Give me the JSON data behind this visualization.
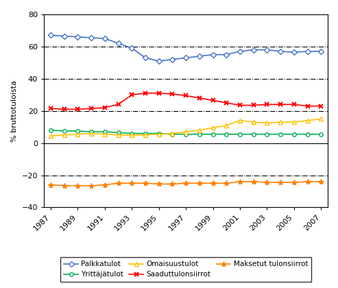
{
  "years": [
    1987,
    1988,
    1989,
    1990,
    1991,
    1992,
    1993,
    1994,
    1995,
    1996,
    1997,
    1998,
    1999,
    2000,
    2001,
    2002,
    2003,
    2004,
    2005,
    2006,
    2007
  ],
  "palkkatulot": [
    67,
    66.5,
    66,
    65.5,
    65,
    62,
    59,
    53,
    51,
    52,
    53,
    54,
    55,
    55,
    57,
    58,
    58,
    57,
    56.5,
    57,
    57
  ],
  "yrittajatulot": [
    8,
    7.5,
    7.5,
    7,
    7,
    6.5,
    6,
    6,
    6,
    5.5,
    5.5,
    5.5,
    5.5,
    5.5,
    5.5,
    5.5,
    5.5,
    5.5,
    5.5,
    5.5,
    5.5
  ],
  "omaisuustulot": [
    4.5,
    5,
    5.5,
    6,
    5.5,
    5,
    5,
    5,
    5.5,
    6,
    7,
    8,
    9.5,
    11,
    14,
    13,
    12.5,
    13,
    13,
    14,
    15
  ],
  "saadut_tulonsiirrot": [
    21.5,
    21,
    21,
    21.5,
    22,
    24,
    30,
    31,
    31,
    30.5,
    29.5,
    28,
    26.5,
    25,
    23.5,
    23.5,
    24,
    24,
    24,
    23,
    23
  ],
  "maksetut_tulonsiirrot": [
    -26,
    -26.5,
    -26.5,
    -26.5,
    -26,
    -25,
    -25,
    -25,
    -25.5,
    -25.5,
    -25,
    -25,
    -25,
    -25,
    -24,
    -24,
    -24.5,
    -24.5,
    -24.5,
    -24,
    -24
  ],
  "colors": {
    "palkkatulot": "#4472C4",
    "yrittajatulot": "#00B050",
    "omaisuustulot": "#FFC000",
    "saadut_tulonsiirrot": "#FF0000",
    "maksetut_tulonsiirrot": "#FF8000"
  },
  "ylabel": "% bruttotuloista",
  "ylim": [
    -40,
    80
  ],
  "yticks": [
    -40,
    -20,
    0,
    20,
    40,
    60,
    80
  ],
  "xticks": [
    1987,
    1989,
    1991,
    1993,
    1995,
    1997,
    1999,
    2001,
    2003,
    2005,
    2007
  ],
  "legend_labels": [
    "Palkkatulot",
    "Yrittäjätulot",
    "Omaisuustulot",
    "Saaduttulonsiirrot",
    "Maksetut tulonsiirrot"
  ],
  "grid_ticks": [
    60,
    40,
    20,
    -20
  ]
}
